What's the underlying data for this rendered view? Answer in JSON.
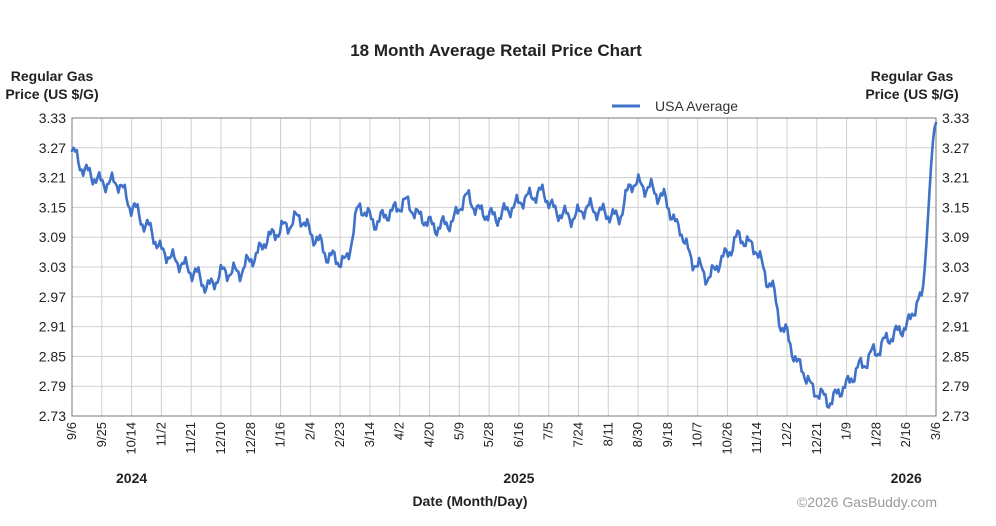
{
  "chart_data": {
    "type": "line",
    "title": "18 Month Average Retail Price Chart",
    "ylabel_left": [
      "Regular Gas",
      "Price (US $/G)"
    ],
    "ylabel_right": [
      "Regular Gas",
      "Price (US $/G)"
    ],
    "xlabel": "Date (Month/Day)",
    "ylim": [
      2.73,
      3.33
    ],
    "yticks": [
      "3.33",
      "3.27",
      "3.21",
      "3.15",
      "3.09",
      "3.03",
      "2.97",
      "2.91",
      "2.85",
      "2.79",
      "2.73"
    ],
    "xticks": [
      "9/6",
      "9/25",
      "10/14",
      "11/2",
      "11/21",
      "12/10",
      "12/28",
      "1/16",
      "2/4",
      "2/23",
      "3/14",
      "4/2",
      "4/20",
      "5/9",
      "5/28",
      "6/16",
      "7/5",
      "7/24",
      "8/11",
      "8/30",
      "9/18",
      "10/7",
      "10/26",
      "11/14",
      "12/2",
      "12/21",
      "1/9",
      "1/28",
      "2/16",
      "3/6"
    ],
    "years": [
      {
        "label": "2024",
        "at_tick": "10/14"
      },
      {
        "label": "2025",
        "at_tick": "6/16"
      },
      {
        "label": "2026",
        "at_tick": "2/16"
      }
    ],
    "legend": "top-center",
    "grid": true,
    "series": [
      {
        "name": "USA Average",
        "color": "#3f72c8",
        "x_start": "9/6/2024",
        "x_end": "3/6/2026",
        "keypoints": [
          [
            0,
            3.26
          ],
          [
            1,
            3.22
          ],
          [
            2,
            3.2
          ],
          [
            3,
            3.2
          ],
          [
            4,
            3.15
          ],
          [
            5,
            3.11
          ],
          [
            6,
            3.06
          ],
          [
            7,
            3.04
          ],
          [
            8,
            3.02
          ],
          [
            9,
            2.99
          ],
          [
            10,
            3.02
          ],
          [
            11,
            3.02
          ],
          [
            12,
            3.05
          ],
          [
            13,
            3.09
          ],
          [
            14,
            3.11
          ],
          [
            15,
            3.13
          ],
          [
            16,
            3.09
          ],
          [
            17,
            3.05
          ],
          [
            18,
            3.04
          ],
          [
            19,
            3.15
          ],
          [
            20,
            3.12
          ],
          [
            21,
            3.14
          ],
          [
            22,
            3.16
          ],
          [
            23,
            3.13
          ],
          [
            24,
            3.11
          ],
          [
            25,
            3.12
          ],
          [
            26,
            3.17
          ],
          [
            27,
            3.14
          ],
          [
            28,
            3.13
          ],
          [
            29,
            3.15
          ],
          [
            30,
            3.17
          ],
          [
            31,
            3.18
          ],
          [
            32,
            3.14
          ],
          [
            33,
            3.13
          ],
          [
            34,
            3.15
          ],
          [
            35,
            3.14
          ],
          [
            36,
            3.13
          ],
          [
            37,
            3.2
          ],
          [
            38,
            3.19
          ],
          [
            39,
            3.17
          ],
          [
            40,
            3.11
          ],
          [
            41,
            3.04
          ],
          [
            42,
            3.01
          ],
          [
            43,
            3.05
          ],
          [
            44,
            3.09
          ],
          [
            45,
            3.07
          ],
          [
            46,
            3.0
          ],
          [
            47,
            2.9
          ],
          [
            48,
            2.83
          ],
          [
            49,
            2.78
          ],
          [
            50,
            2.76
          ],
          [
            51,
            2.79
          ],
          [
            52,
            2.83
          ],
          [
            53,
            2.86
          ],
          [
            54,
            2.89
          ],
          [
            55,
            2.91
          ],
          [
            56,
            2.97
          ],
          [
            57,
            3.32
          ]
        ]
      }
    ]
  },
  "credit": "©2026 GasBuddy.com"
}
